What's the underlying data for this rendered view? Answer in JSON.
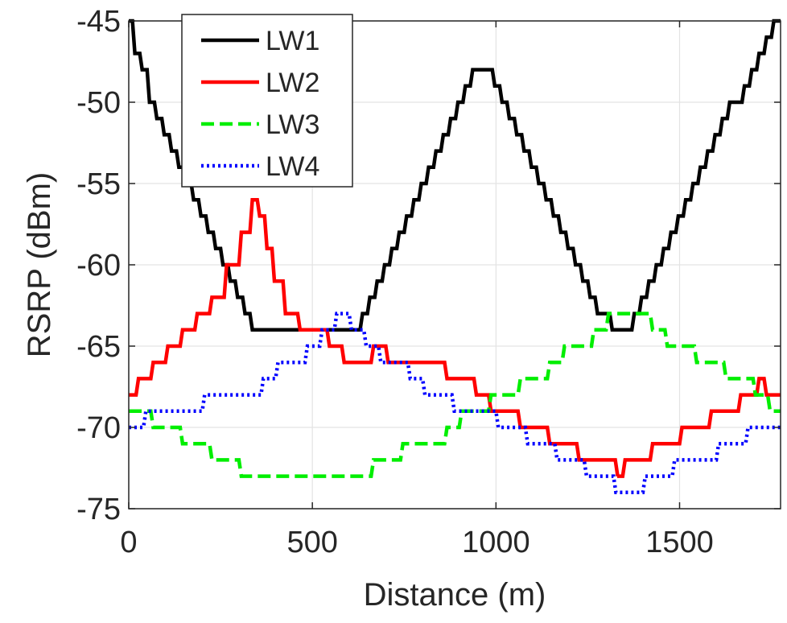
{
  "chart_data": {
    "type": "line",
    "xlabel": "Distance (m)",
    "ylabel": "RSRP (dBm)",
    "xlim": [
      0,
      1775
    ],
    "ylim": [
      -75,
      -45
    ],
    "xticks": [
      0,
      500,
      1000,
      1500
    ],
    "xtick_labels": [
      "0",
      "500",
      "1000",
      "1500"
    ],
    "yticks": [
      -75,
      -70,
      -65,
      -60,
      -55,
      -50,
      -45
    ],
    "ytick_labels": [
      "-75",
      "-70",
      "-65",
      "-60",
      "-55",
      "-50",
      "-45"
    ],
    "grid": true,
    "legend_position": "top-left",
    "series": [
      {
        "name": "LW1",
        "color": "#000000",
        "style": "solid",
        "x": [
          0,
          20,
          40,
          60,
          80,
          100,
          120,
          140,
          160,
          180,
          200,
          220,
          240,
          260,
          280,
          300,
          320,
          340,
          360,
          380,
          400,
          420,
          440,
          460,
          480,
          500,
          520,
          540,
          560,
          580,
          600,
          620,
          640,
          660,
          680,
          700,
          720,
          740,
          760,
          780,
          800,
          820,
          840,
          860,
          880,
          900,
          920,
          940,
          960,
          980,
          1000,
          1020,
          1040,
          1060,
          1080,
          1100,
          1120,
          1140,
          1160,
          1180,
          1200,
          1220,
          1240,
          1260,
          1280,
          1300,
          1320,
          1340,
          1360,
          1380,
          1400,
          1420,
          1440,
          1460,
          1480,
          1500,
          1520,
          1540,
          1560,
          1580,
          1600,
          1620,
          1640,
          1660,
          1680,
          1700,
          1720,
          1740,
          1760,
          1775
        ],
        "y": [
          -45,
          -47,
          -48,
          -50,
          -51,
          -52,
          -53,
          -54,
          -55,
          -56,
          -57,
          -58,
          -59,
          -60,
          -61,
          -62,
          -63,
          -64,
          -64,
          -64,
          -64,
          -64,
          -64,
          -64,
          -64,
          -64,
          -64,
          -64,
          -64,
          -64,
          -64,
          -64,
          -63,
          -62,
          -61,
          -60,
          -59,
          -58,
          -57,
          -56,
          -55,
          -54,
          -53,
          -52,
          -51,
          -50,
          -49,
          -48,
          -48,
          -48,
          -49,
          -50,
          -51,
          -52,
          -53,
          -54,
          -55,
          -56,
          -57,
          -58,
          -59,
          -60,
          -61,
          -62,
          -63,
          -63,
          -64,
          -64,
          -64,
          -63,
          -62,
          -61,
          -60,
          -59,
          -58,
          -57,
          -56,
          -55,
          -54,
          -53,
          -52,
          -51,
          -50,
          -50,
          -49,
          -48,
          -47,
          -46,
          -45,
          -45
        ]
      },
      {
        "name": "LW2",
        "color": "#ff0000",
        "style": "solid",
        "x": [
          0,
          40,
          80,
          120,
          160,
          200,
          240,
          280,
          320,
          340,
          360,
          380,
          400,
          440,
          480,
          520,
          560,
          600,
          640,
          680,
          720,
          760,
          800,
          840,
          880,
          920,
          960,
          1000,
          1040,
          1080,
          1120,
          1160,
          1200,
          1240,
          1280,
          1320,
          1330,
          1360,
          1400,
          1440,
          1480,
          1520,
          1560,
          1600,
          1640,
          1680,
          1700,
          1720,
          1740,
          1775
        ],
        "y": [
          -68,
          -67,
          -66,
          -65,
          -64,
          -63,
          -62,
          -60,
          -58,
          -56,
          -57,
          -59,
          -61,
          -63,
          -64,
          -64,
          -65,
          -66,
          -66,
          -65,
          -66,
          -66,
          -66,
          -66,
          -67,
          -67,
          -68,
          -69,
          -69,
          -70,
          -70,
          -71,
          -71,
          -72,
          -72,
          -72,
          -73,
          -72,
          -72,
          -71,
          -71,
          -70,
          -70,
          -69,
          -69,
          -68,
          -68,
          -67,
          -68,
          -68
        ]
      },
      {
        "name": "LW3",
        "color": "#00ee00",
        "style": "dashed",
        "x": [
          0,
          40,
          80,
          120,
          160,
          200,
          240,
          280,
          320,
          360,
          400,
          440,
          480,
          520,
          560,
          600,
          640,
          680,
          720,
          760,
          800,
          840,
          880,
          920,
          960,
          1000,
          1040,
          1080,
          1120,
          1160,
          1200,
          1240,
          1280,
          1320,
          1360,
          1400,
          1440,
          1480,
          1520,
          1560,
          1600,
          1640,
          1680,
          1720,
          1760,
          1775
        ],
        "y": [
          -69,
          -69,
          -70,
          -70,
          -71,
          -71,
          -72,
          -72,
          -73,
          -73,
          -73,
          -73,
          -73,
          -73,
          -73,
          -73,
          -73,
          -72,
          -72,
          -71,
          -71,
          -71,
          -70,
          -69,
          -69,
          -68,
          -68,
          -67,
          -67,
          -66,
          -65,
          -65,
          -64,
          -63,
          -63,
          -63,
          -64,
          -65,
          -65,
          -66,
          -66,
          -67,
          -67,
          -68,
          -69,
          -69
        ]
      },
      {
        "name": "LW4",
        "color": "#0000ff",
        "style": "dotted",
        "x": [
          0,
          20,
          60,
          100,
          140,
          180,
          220,
          260,
          300,
          340,
          380,
          420,
          460,
          500,
          540,
          580,
          620,
          660,
          700,
          740,
          780,
          820,
          860,
          900,
          940,
          980,
          1020,
          1060,
          1100,
          1140,
          1180,
          1220,
          1260,
          1300,
          1340,
          1380,
          1420,
          1460,
          1500,
          1540,
          1580,
          1620,
          1660,
          1700,
          1740,
          1775
        ],
        "y": [
          -70,
          -70,
          -69,
          -69,
          -69,
          -69,
          -68,
          -68,
          -68,
          -68,
          -67,
          -66,
          -66,
          -65,
          -64,
          -63,
          -64,
          -65,
          -66,
          -66,
          -67,
          -68,
          -68,
          -69,
          -69,
          -69,
          -70,
          -70,
          -71,
          -71,
          -72,
          -72,
          -73,
          -73,
          -74,
          -74,
          -73,
          -73,
          -72,
          -72,
          -72,
          -71,
          -71,
          -70,
          -70,
          -70
        ]
      }
    ]
  }
}
